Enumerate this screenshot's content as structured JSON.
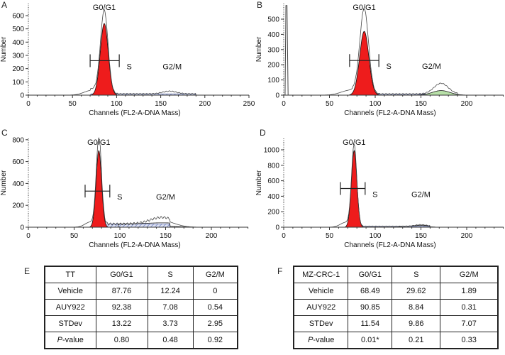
{
  "panel_labels": [
    "A",
    "B",
    "C",
    "D",
    "E",
    "F"
  ],
  "chart_data": [
    {
      "id": "A",
      "type": "area",
      "xlabel": "Channels (FL2-A-DNA Mass)",
      "ylabel": "Number",
      "xlim": [
        0,
        250
      ],
      "ylim": [
        0,
        650
      ],
      "xticks": [
        0,
        50,
        100,
        150,
        200,
        250
      ],
      "yticks": [
        0,
        100,
        200,
        300,
        400,
        500,
        600
      ],
      "phase_labels": {
        "g0g1": "G0/G1",
        "s": "S",
        "g2m": "G2/M"
      },
      "g0g1_peak": {
        "channel": 86,
        "outline_height": 620,
        "fit_height": 540,
        "sigma": 4.5
      },
      "s_level": 10,
      "s_range": [
        70,
        190
      ],
      "g2m_peak": {
        "channel": 160,
        "outline_height": 20,
        "fit_height": 0,
        "sigma": 6
      },
      "gate": {
        "from": 70,
        "to": 103,
        "level": 260
      },
      "debris_spike": null
    },
    {
      "id": "B",
      "type": "area",
      "xlabel": "Channels (FL2-A-DNA Mass)",
      "ylabel": "Number",
      "xlim": [
        0,
        240
      ],
      "ylim": [
        0,
        580
      ],
      "xticks": [
        0,
        50,
        100,
        150,
        200
      ],
      "yticks": [
        0,
        100,
        200,
        300,
        400,
        500
      ],
      "phase_labels": {
        "g0g1": "G0/G1",
        "s": "S",
        "g2m": "G2/M"
      },
      "g0g1_peak": {
        "channel": 88,
        "outline_height": 550,
        "fit_height": 420,
        "sigma": 5
      },
      "s_level": 8,
      "s_range": [
        75,
        190
      ],
      "g2m_peak": {
        "channel": 172,
        "outline_height": 70,
        "fit_height": 30,
        "sigma": 6
      },
      "gate": {
        "from": 72,
        "to": 104,
        "level": 228
      },
      "debris_spike": {
        "channel": 3,
        "height": 590
      }
    },
    {
      "id": "C",
      "type": "area",
      "xlabel": "Channels (FL2-A-DNA Mass)",
      "ylabel": "Number",
      "xlim": [
        0,
        240
      ],
      "ylim": [
        0,
        830
      ],
      "xticks": [
        0,
        50,
        100,
        150,
        200
      ],
      "yticks": [
        0,
        200,
        400,
        600,
        800
      ],
      "phase_labels": {
        "g0g1": "G0/G1",
        "s": "S",
        "g2m": "G2/M"
      },
      "g0g1_peak": {
        "channel": 77,
        "outline_height": 800,
        "fit_height": 700,
        "sigma": 3
      },
      "s_level": 30,
      "s_range": [
        78,
        155
      ],
      "g2m_peak": {
        "channel": 146,
        "outline_height": 60,
        "fit_height": 10,
        "sigma": 10
      },
      "gate": {
        "from": 62,
        "to": 89,
        "level": 330
      },
      "debris_spike": null
    },
    {
      "id": "D",
      "type": "area",
      "xlabel": "Channels (FL2-A-DNA Mass)",
      "ylabel": "Number",
      "xlim": [
        0,
        240
      ],
      "ylim": [
        0,
        1150
      ],
      "xticks": [
        0,
        50,
        100,
        150,
        200
      ],
      "yticks": [
        0,
        200,
        400,
        600,
        800,
        1000
      ],
      "phase_labels": {
        "g0g1": "G0/G1",
        "s": "S",
        "g2m": "G2/M"
      },
      "g0g1_peak": {
        "channel": 77,
        "outline_height": 1050,
        "fit_height": 990,
        "sigma": 3
      },
      "s_level": 12,
      "s_range": [
        80,
        160
      ],
      "g2m_peak": {
        "channel": 150,
        "outline_height": 20,
        "fit_height": 10,
        "sigma": 5
      },
      "gate": {
        "from": 62,
        "to": 89,
        "level": 500
      },
      "debris_spike": null
    }
  ],
  "tables": [
    {
      "headers": [
        "TT",
        "G0/G1",
        "S",
        "G2/M"
      ],
      "rows": [
        [
          "Vehicle",
          "87.76",
          "12.24",
          "0"
        ],
        [
          "AUY922",
          "92.38",
          "7.08",
          "0.54"
        ],
        [
          "STDev",
          "13.22",
          "3.73",
          "2.95"
        ],
        [
          "P-value",
          "0.80",
          "0.48",
          "0.92"
        ]
      ]
    },
    {
      "headers": [
        "MZ-CRC-1",
        "G0/G1",
        "S",
        "G2/M"
      ],
      "rows": [
        [
          "Vehicle",
          "68.49",
          "29.62",
          "1.89"
        ],
        [
          "AUY922",
          "90.85",
          "8.84",
          "0.31"
        ],
        [
          "STDev",
          "11.54",
          "9.86",
          "7.07"
        ],
        [
          "P-value",
          "0.01*",
          "0.21",
          "0.33"
        ]
      ]
    }
  ],
  "colors": {
    "g0g1_fill": "#ee1c1c",
    "g2m_fill": "#b8e0a8",
    "s_hatch": "#7f8fc8",
    "outline": "#444444"
  }
}
